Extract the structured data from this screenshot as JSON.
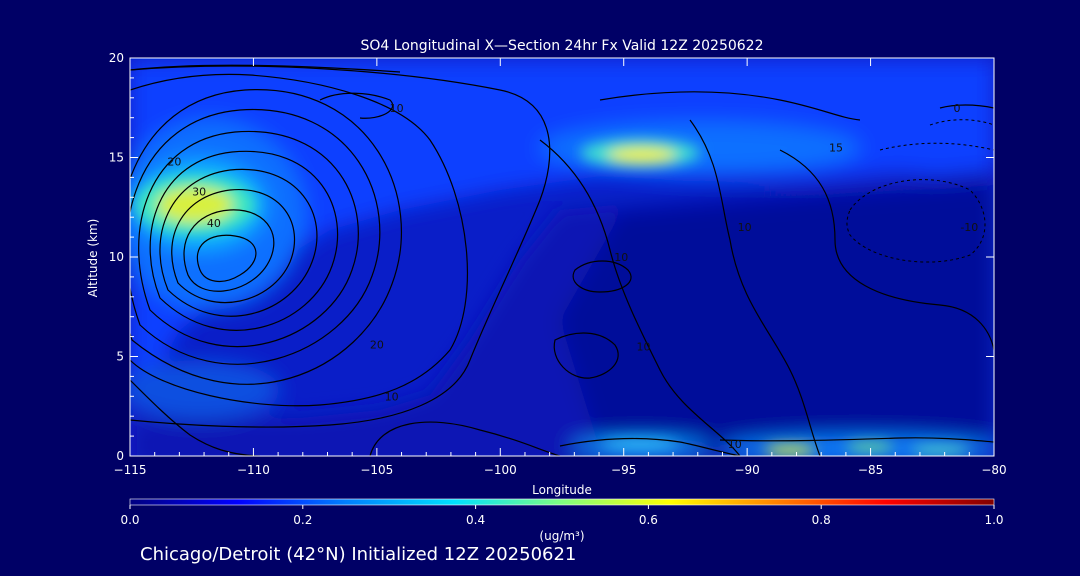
{
  "chart_data": {
    "type": "heatmap",
    "title": "SO4 Longitudinal X—Section 24hr  Fx Valid 12Z 20250622",
    "xlabel": "Longitude",
    "ylabel": "Altitude (km)",
    "xlim": [
      -115,
      -80
    ],
    "ylim": [
      0,
      20
    ],
    "x_ticks": [
      -115,
      -110,
      -105,
      -100,
      -95,
      -90,
      -85,
      -80
    ],
    "x_tick_labels": [
      "−115",
      "−110",
      "−105",
      "−100",
      "−95",
      "−90",
      "−85",
      "−80"
    ],
    "y_ticks": [
      0,
      5,
      10,
      15,
      20
    ],
    "y_tick_labels": [
      "0",
      "5",
      "10",
      "15",
      "20"
    ],
    "colorbar": {
      "min": 0.0,
      "max": 1.0,
      "ticks": [
        0.0,
        0.2,
        0.4,
        0.6,
        0.8,
        1.0
      ],
      "tick_labels": [
        "0.0",
        "0.2",
        "0.4",
        "0.6",
        "0.8",
        "1.0"
      ],
      "unit_label": "(ug/m³)",
      "colors": [
        "#000080",
        "#0000ff",
        "#0080ff",
        "#00e0ff",
        "#80ff80",
        "#ffff00",
        "#ff8000",
        "#ff0000",
        "#800000"
      ]
    },
    "concentration_maxima": [
      {
        "lon": -112.5,
        "alt": 12.5,
        "value": 0.58
      },
      {
        "lon": -94.0,
        "alt": 15.0,
        "value": 0.6
      },
      {
        "lon": -87.0,
        "alt": 0.2,
        "value": 0.6
      },
      {
        "lon": -94.0,
        "alt": 0.5,
        "value": 0.35
      }
    ],
    "contour_labels": [
      {
        "text": "10",
        "lon": -104.2,
        "alt": 17.5
      },
      {
        "text": "20",
        "lon": -113.2,
        "alt": 14.8
      },
      {
        "text": "30",
        "lon": -112.2,
        "alt": 13.3
      },
      {
        "text": "40",
        "lon": -111.6,
        "alt": 11.7
      },
      {
        "text": "20",
        "lon": -105.0,
        "alt": 5.6
      },
      {
        "text": "10",
        "lon": -104.4,
        "alt": 3.0
      },
      {
        "text": "10",
        "lon": -94.2,
        "alt": 5.5
      },
      {
        "text": "10",
        "lon": -95.1,
        "alt": 10.0
      },
      {
        "text": "10",
        "lon": -90.1,
        "alt": 11.5
      },
      {
        "text": "15",
        "lon": -86.4,
        "alt": 15.5
      },
      {
        "text": "0",
        "lon": -81.5,
        "alt": 17.5
      },
      {
        "text": "-10",
        "lon": -81.0,
        "alt": 11.5
      },
      {
        "text": "10",
        "lon": -90.5,
        "alt": 0.6
      }
    ]
  },
  "caption": "Chicago/Detroit (42°N) Initialized 12Z 20250621"
}
